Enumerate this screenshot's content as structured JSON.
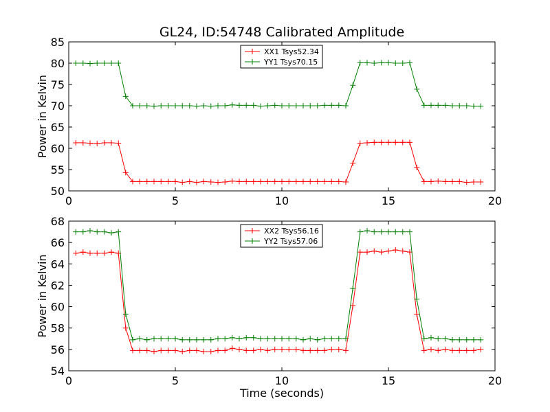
{
  "title": "GL24, ID:54748 Calibrated Amplitude",
  "colors": {
    "xx": "#ff0000",
    "yy": "#008000"
  },
  "chart_data": [
    {
      "type": "line",
      "title": "GL24, ID:54748 Calibrated Amplitude",
      "xlabel": "",
      "ylabel": "Power in Kelvin",
      "xlim": [
        0,
        20
      ],
      "ylim": [
        50,
        85
      ],
      "xticks": [
        0,
        5,
        10,
        15,
        20
      ],
      "yticks": [
        50,
        55,
        60,
        65,
        70,
        75,
        80,
        85
      ],
      "grid": false,
      "legend_position": "top-center",
      "x": [
        0.33,
        0.67,
        1.0,
        1.33,
        1.67,
        2.0,
        2.33,
        2.67,
        3.0,
        3.33,
        3.67,
        4.0,
        4.33,
        4.67,
        5.0,
        5.33,
        5.67,
        6.0,
        6.33,
        6.67,
        7.0,
        7.33,
        7.67,
        8.0,
        8.33,
        8.67,
        9.0,
        9.33,
        9.67,
        10.0,
        10.33,
        10.67,
        11.0,
        11.33,
        11.67,
        12.0,
        12.33,
        12.67,
        13.0,
        13.33,
        13.67,
        14.0,
        14.33,
        14.67,
        15.0,
        15.33,
        15.67,
        16.0,
        16.33,
        16.67,
        17.0,
        17.33,
        17.67,
        18.0,
        18.33,
        18.67,
        19.0,
        19.33
      ],
      "series": [
        {
          "name": "XX1 Tsys52.34",
          "color": "#ff0000",
          "values": [
            61.3,
            61.3,
            61.2,
            61.1,
            61.3,
            61.3,
            61.2,
            54.3,
            52.2,
            52.2,
            52.2,
            52.2,
            52.2,
            52.2,
            52.2,
            52.0,
            52.2,
            52.0,
            52.2,
            52.1,
            52.0,
            52.1,
            52.3,
            52.2,
            52.2,
            52.2,
            52.2,
            52.2,
            52.2,
            52.2,
            52.2,
            52.2,
            52.2,
            52.2,
            52.2,
            52.2,
            52.2,
            52.2,
            52.1,
            56.5,
            61.2,
            61.3,
            61.4,
            61.4,
            61.4,
            61.4,
            61.4,
            61.4,
            55.5,
            52.2,
            52.2,
            52.3,
            52.2,
            52.2,
            52.2,
            52.0,
            52.1,
            52.1
          ]
        },
        {
          "name": "YY1 Tsys70.15",
          "color": "#008000",
          "values": [
            80.0,
            80.0,
            79.9,
            80.0,
            80.0,
            80.0,
            80.0,
            72.2,
            70.0,
            70.0,
            70.0,
            69.9,
            70.0,
            70.0,
            70.0,
            70.0,
            70.0,
            69.9,
            70.0,
            69.9,
            70.0,
            70.0,
            70.2,
            70.1,
            70.1,
            70.1,
            69.9,
            70.0,
            70.1,
            70.0,
            70.0,
            70.0,
            70.0,
            70.0,
            70.0,
            70.1,
            70.1,
            70.1,
            70.0,
            74.8,
            80.1,
            80.1,
            80.0,
            80.1,
            80.1,
            80.0,
            80.0,
            80.1,
            73.9,
            70.1,
            70.1,
            70.1,
            70.1,
            70.0,
            70.0,
            70.0,
            69.9,
            69.9
          ]
        }
      ]
    },
    {
      "type": "line",
      "title": "",
      "xlabel": "Time (seconds)",
      "ylabel": "Power in Kelvin",
      "xlim": [
        0,
        20
      ],
      "ylim": [
        54,
        68
      ],
      "xticks": [
        0,
        5,
        10,
        15,
        20
      ],
      "yticks": [
        54,
        56,
        58,
        60,
        62,
        64,
        66,
        68
      ],
      "grid": false,
      "legend_position": "top-center",
      "x": [
        0.33,
        0.67,
        1.0,
        1.33,
        1.67,
        2.0,
        2.33,
        2.67,
        3.0,
        3.33,
        3.67,
        4.0,
        4.33,
        4.67,
        5.0,
        5.33,
        5.67,
        6.0,
        6.33,
        6.67,
        7.0,
        7.33,
        7.67,
        8.0,
        8.33,
        8.67,
        9.0,
        9.33,
        9.67,
        10.0,
        10.33,
        10.67,
        11.0,
        11.33,
        11.67,
        12.0,
        12.33,
        12.67,
        13.0,
        13.33,
        13.67,
        14.0,
        14.33,
        14.67,
        15.0,
        15.33,
        15.67,
        16.0,
        16.33,
        16.67,
        17.0,
        17.33,
        17.67,
        18.0,
        18.33,
        18.67,
        19.0,
        19.33
      ],
      "series": [
        {
          "name": "XX2 Tsys56.16",
          "color": "#ff0000",
          "values": [
            65.0,
            65.1,
            65.0,
            65.0,
            65.0,
            65.1,
            65.0,
            58.0,
            55.9,
            55.9,
            55.9,
            55.8,
            55.9,
            55.9,
            55.9,
            55.8,
            55.9,
            55.9,
            55.8,
            55.8,
            55.9,
            55.9,
            56.1,
            56.0,
            55.9,
            55.9,
            56.0,
            55.9,
            56.0,
            56.0,
            56.0,
            56.0,
            55.9,
            55.9,
            55.9,
            55.9,
            56.0,
            56.0,
            55.9,
            60.1,
            65.1,
            65.1,
            65.2,
            65.1,
            65.2,
            65.3,
            65.2,
            65.1,
            59.3,
            55.9,
            56.0,
            55.9,
            56.0,
            55.9,
            55.9,
            55.9,
            55.9,
            56.0
          ]
        },
        {
          "name": "YY2 Tsys57.06",
          "color": "#008000",
          "values": [
            67.0,
            67.0,
            67.1,
            67.0,
            67.0,
            66.9,
            67.0,
            59.3,
            56.9,
            57.0,
            56.9,
            57.0,
            57.0,
            57.0,
            57.0,
            56.9,
            56.9,
            56.9,
            56.9,
            56.9,
            57.0,
            57.0,
            57.1,
            57.0,
            57.1,
            57.1,
            57.0,
            57.0,
            57.0,
            57.0,
            57.0,
            57.0,
            56.9,
            57.0,
            56.9,
            57.0,
            57.0,
            57.0,
            57.0,
            61.7,
            67.0,
            67.1,
            67.0,
            67.0,
            67.0,
            67.0,
            67.0,
            67.0,
            60.7,
            57.0,
            57.1,
            57.0,
            57.0,
            56.9,
            56.9,
            56.9,
            56.9,
            56.9
          ]
        }
      ]
    }
  ]
}
